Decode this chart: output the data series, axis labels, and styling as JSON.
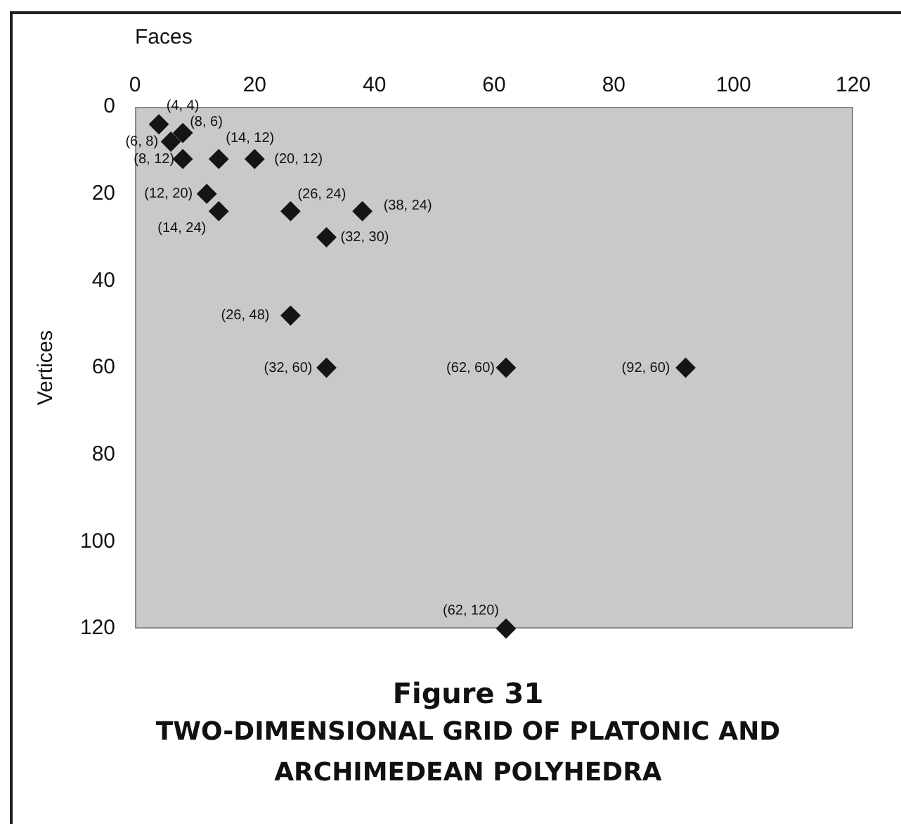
{
  "chart_data": {
    "type": "scatter",
    "title": "Figure 31",
    "subtitle": "TWO-DIMENSIONAL GRID OF PLATONIC AND ARCHIMEDEAN POLYHEDRA",
    "xlabel": "Faces",
    "ylabel": "Vertices",
    "x": [
      4,
      8,
      6,
      8,
      14,
      20,
      12,
      14,
      26,
      38,
      32,
      26,
      32,
      62,
      92,
      62
    ],
    "values": [
      4,
      6,
      8,
      12,
      12,
      12,
      20,
      24,
      24,
      24,
      30,
      48,
      60,
      60,
      60,
      120
    ],
    "value_labels": [
      "(4, 4)",
      "(8, 6)",
      "(6, 8)",
      "(8, 12)",
      "(14, 12)",
      "(20, 12)",
      "(12, 20)",
      "(14, 24)",
      "(26, 24)",
      "(38, 24)",
      "(32, 30)",
      "(26, 48)",
      "(32, 60)",
      "(62, 60)",
      "(92, 60)",
      "(62, 120)"
    ],
    "color": "#151515",
    "marker": "diamond",
    "xlim": [
      0,
      120
    ],
    "xticks": [
      0,
      20,
      40,
      60,
      80,
      100,
      120
    ],
    "ylim": [
      120,
      0
    ],
    "yticks": [
      0,
      20,
      40,
      60,
      80,
      100,
      120
    ]
  }
}
